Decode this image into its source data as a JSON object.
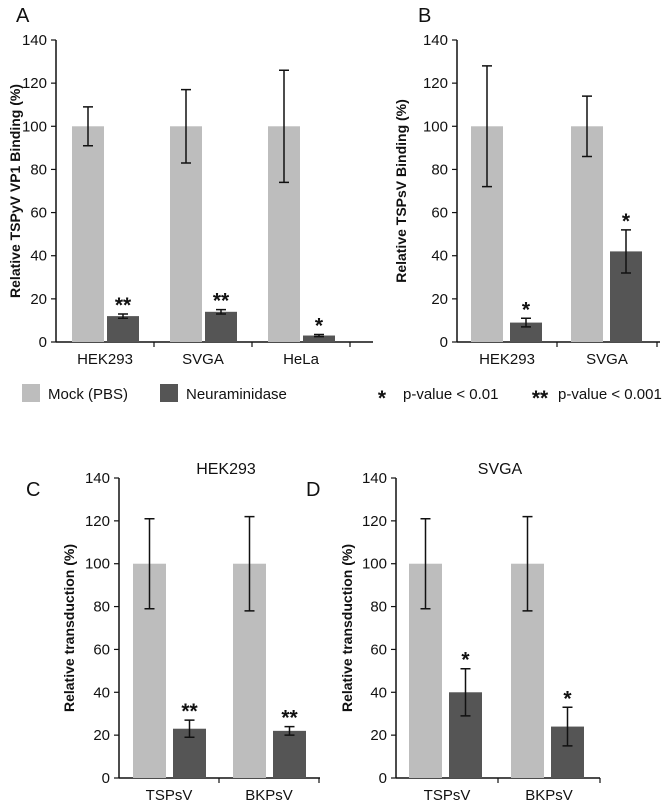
{
  "colors": {
    "mock": "#bdbdbd",
    "neuraminidase": "#555555",
    "axis": "#111111"
  },
  "legend": {
    "mock": "Mock (PBS)",
    "neuraminidase": "Neuraminidase",
    "sig1_symbol": "*",
    "sig1_text": "p-value < 0.01",
    "sig2_symbol": "**",
    "sig2_text": "p-value < 0.001"
  },
  "chart_data": [
    {
      "panel": "A",
      "type": "bar",
      "title": "",
      "ylabel": "Relative TSPyV VP1 Binding  (%)",
      "ylim": [
        0,
        140
      ],
      "yticks": [
        0,
        20,
        40,
        60,
        80,
        100,
        120,
        140
      ],
      "categories": [
        "HEK293",
        "SVGA",
        "HeLa"
      ],
      "series": [
        {
          "name": "Mock (PBS)",
          "values": [
            100,
            100,
            100
          ],
          "errors": [
            9,
            17,
            26
          ]
        },
        {
          "name": "Neuraminidase",
          "values": [
            12,
            14,
            3
          ],
          "errors": [
            1,
            1,
            0.5
          ]
        }
      ],
      "significance": [
        "**",
        "**",
        "*"
      ],
      "grid": false
    },
    {
      "panel": "B",
      "type": "bar",
      "title": "",
      "ylabel": "Relative TSPsV Binding  (%)",
      "ylim": [
        0,
        140
      ],
      "yticks": [
        0,
        20,
        40,
        60,
        80,
        100,
        120,
        140
      ],
      "categories": [
        "HEK293",
        "SVGA"
      ],
      "series": [
        {
          "name": "Mock (PBS)",
          "values": [
            100,
            100
          ],
          "errors": [
            28,
            14
          ]
        },
        {
          "name": "Neuraminidase",
          "values": [
            9,
            42
          ],
          "errors": [
            2,
            10
          ]
        }
      ],
      "significance": [
        "*",
        "*"
      ],
      "grid": false
    },
    {
      "panel": "C",
      "type": "bar",
      "title": "HEK293",
      "ylabel": "Relative transduction (%)",
      "ylim": [
        0,
        140
      ],
      "yticks": [
        0,
        20,
        40,
        60,
        80,
        100,
        120,
        140
      ],
      "categories": [
        "TSPsV",
        "BKPsV"
      ],
      "series": [
        {
          "name": "Mock (PBS)",
          "values": [
            100,
            100
          ],
          "errors": [
            21,
            22
          ]
        },
        {
          "name": "Neuraminidase",
          "values": [
            23,
            22
          ],
          "errors": [
            4,
            2
          ]
        }
      ],
      "significance": [
        "**",
        "**"
      ],
      "grid": false
    },
    {
      "panel": "D",
      "type": "bar",
      "title": "SVGA",
      "ylabel": "Relative transduction (%)",
      "ylim": [
        0,
        140
      ],
      "yticks": [
        0,
        20,
        40,
        60,
        80,
        100,
        120,
        140
      ],
      "categories": [
        "TSPsV",
        "BKPsV"
      ],
      "series": [
        {
          "name": "Mock (PBS)",
          "values": [
            100,
            100
          ],
          "errors": [
            21,
            22
          ]
        },
        {
          "name": "Neuraminidase",
          "values": [
            40,
            24
          ],
          "errors": [
            11,
            9
          ]
        }
      ],
      "significance": [
        "*",
        "*"
      ],
      "grid": false
    }
  ]
}
